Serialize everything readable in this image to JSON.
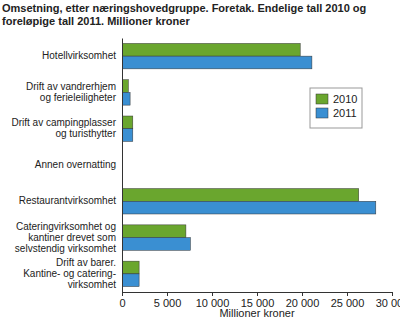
{
  "chart_data": {
    "type": "bar",
    "orientation": "horizontal",
    "title": "Omsetning, etter næringshovedgruppe. Foretak. Endelige tall 2010 og foreløpige tall 2011. Millioner kroner",
    "x_label": "Millioner kroner",
    "categories": [
      "Hotellvirksomhet",
      "Drift av vandrerhjem\nog ferieleiligheter",
      "Drift av campingplasser\nog turisthytter",
      "Annen overnatting",
      "Restaurantvirksomhet",
      "Cateringvirksomhet og\nkantiner drevet som\nselvstendig virksomhet",
      "Drift av barer.\nKantine- og catering-\nvirksomhet"
    ],
    "series": [
      {
        "name": "2010",
        "color": "#6aa62e",
        "values": [
          19800,
          700,
          1200,
          50,
          26300,
          7100,
          1900
        ]
      },
      {
        "name": "2011",
        "color": "#3a8fd2",
        "values": [
          21100,
          900,
          1200,
          60,
          28200,
          7600,
          1900
        ]
      }
    ],
    "xlim": [
      0,
      30000
    ],
    "xticks": [
      0,
      {
        "value": 5000,
        "label": "5 000"
      },
      {
        "value": 10000,
        "label": "10 000"
      },
      {
        "value": 15000,
        "label": "15 000"
      },
      {
        "value": 20000,
        "label": "20 000"
      },
      {
        "value": 25000,
        "label": "25 000"
      },
      {
        "value": 30000,
        "label": "30 000"
      }
    ],
    "grid": false,
    "legend": "upper right"
  }
}
